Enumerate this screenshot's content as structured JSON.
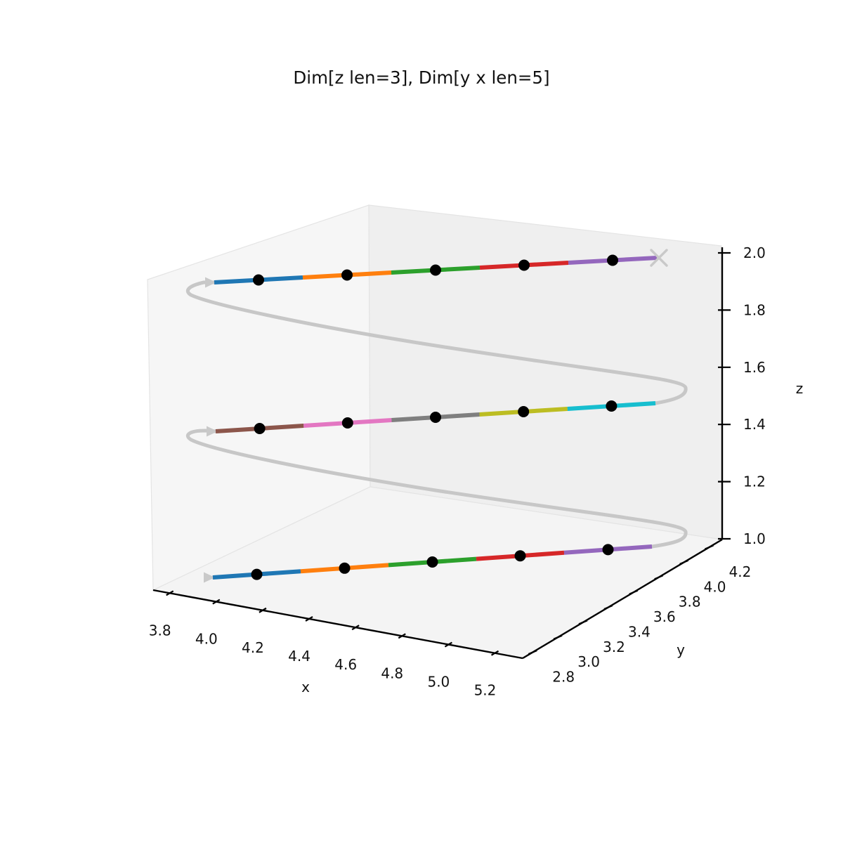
{
  "page": {
    "background": "#ffffff"
  },
  "chart_data": {
    "type": "line",
    "subtype": "3d-trajectory-helix",
    "title": "Dim[z len=3], Dim[y x len=5]",
    "axes": {
      "x": {
        "label": "x",
        "ticks": [
          "3.8",
          "4.0",
          "4.2",
          "4.4",
          "4.6",
          "4.8",
          "5.0",
          "5.2"
        ],
        "range": [
          3.74,
          5.26
        ]
      },
      "y": {
        "label": "y",
        "ticks": [
          "2.8",
          "3.0",
          "3.2",
          "3.4",
          "3.6",
          "3.8",
          "4.0",
          "4.2"
        ],
        "range": [
          2.74,
          4.26
        ]
      },
      "z": {
        "label": "z",
        "ticks": [
          "1.0",
          "1.2",
          "1.4",
          "1.6",
          "1.8",
          "2.0"
        ],
        "range": [
          1.0,
          2.0
        ]
      }
    },
    "grid": false,
    "legend": false,
    "levels": [
      {
        "z": 1.0,
        "x": [
          4.0,
          4.25,
          4.5,
          4.75,
          5.0
        ],
        "y": [
          3.0,
          3.25,
          3.5,
          3.75,
          4.0
        ],
        "segment_colors": [
          "#1f77b4",
          "#ff7f0e",
          "#2ca02c",
          "#d62728",
          "#9467bd"
        ]
      },
      {
        "z": 1.5,
        "x": [
          4.0,
          4.25,
          4.5,
          4.75,
          5.0
        ],
        "y": [
          3.0,
          3.25,
          3.5,
          3.75,
          4.0
        ],
        "segment_colors": [
          "#8c564b",
          "#e377c2",
          "#7f7f7f",
          "#bcbd22",
          "#17becf"
        ]
      },
      {
        "z": 2.0,
        "x": [
          4.0,
          4.25,
          4.5,
          4.75,
          5.0
        ],
        "y": [
          3.0,
          3.25,
          3.5,
          3.75,
          4.0
        ],
        "segment_colors": [
          "#1f77b4",
          "#ff7f0e",
          "#2ca02c",
          "#d62728",
          "#9467bd"
        ]
      }
    ],
    "trajectory": {
      "description": "gray guide helix rising through the three z levels",
      "start_marker": "arrow-right",
      "end_marker": "x-cross"
    },
    "colors": {
      "background": "#ffffff",
      "pane_left": "#f6f6f6",
      "pane_right": "#efefef",
      "pane_floor": "#f4f4f4",
      "pane_edge": "#e4e4e4",
      "trajectory": "#c7c7c7",
      "guide_marker": "#c9c9c9",
      "axis": "#000000",
      "tick_label": "#111111",
      "point": "#000000"
    }
  }
}
